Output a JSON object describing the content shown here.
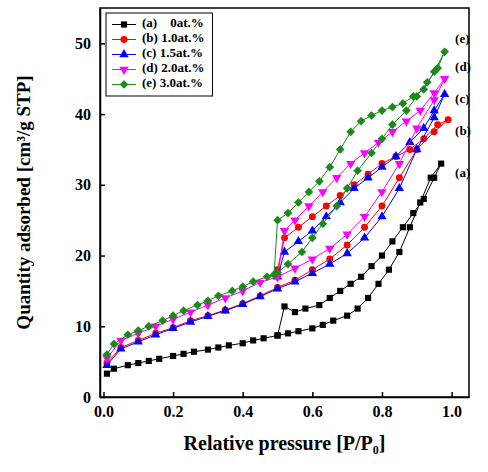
{
  "chart_data": {
    "type": "line",
    "x_label": "Relative pressure [P/P₀]",
    "y_label": "Quantity adsorbed [cm³/g STP]",
    "xlim": [
      -0.01,
      1.05
    ],
    "ylim": [
      0,
      55
    ],
    "xticks": [
      {
        "value": 0,
        "label": "0.0"
      },
      {
        "value": 0.2,
        "label": "0.2"
      },
      {
        "value": 0.4,
        "label": "0.4"
      },
      {
        "value": 0.6,
        "label": "0.6"
      },
      {
        "value": 0.8,
        "label": "0.8"
      },
      {
        "value": 1.0,
        "label": "1.0"
      }
    ],
    "yticks": [
      0,
      10,
      20,
      30,
      40,
      50
    ],
    "legend": "upper left",
    "series": [
      {
        "name": "(a)    0at.%",
        "color": "#000000",
        "marker": "square",
        "line_style": "solid",
        "x": [
          0.01,
          0.03,
          0.07,
          0.1,
          0.13,
          0.16,
          0.2,
          0.23,
          0.26,
          0.3,
          0.33,
          0.36,
          0.4,
          0.43,
          0.46,
          0.5,
          0.53,
          0.56,
          0.6,
          0.63,
          0.66,
          0.7,
          0.73,
          0.76,
          0.79,
          0.82,
          0.85,
          0.88,
          0.91,
          0.94,
          0.97,
          0.95,
          0.92,
          0.89,
          0.86,
          0.83,
          0.8,
          0.77,
          0.74,
          0.71,
          0.68,
          0.65,
          0.62,
          0.58,
          0.55,
          0.52,
          0.5
        ],
        "values": [
          3.3,
          4.0,
          4.5,
          4.8,
          5.1,
          5.4,
          5.8,
          6.1,
          6.4,
          6.7,
          7.0,
          7.3,
          7.6,
          8.0,
          8.3,
          8.7,
          9.0,
          9.3,
          9.7,
          10.2,
          10.8,
          11.5,
          12.5,
          14,
          16,
          18,
          20.5,
          24,
          27.5,
          31,
          33,
          31,
          28,
          26,
          24,
          22,
          20,
          18.5,
          17,
          16,
          15,
          14,
          13,
          12.5,
          12,
          12.8,
          8.7
        ]
      },
      {
        "name": "(b) 1.0at.%",
        "color": "#ff0000",
        "marker": "circle",
        "line_style": "solid",
        "x": [
          0.01,
          0.05,
          0.1,
          0.15,
          0.2,
          0.25,
          0.3,
          0.35,
          0.4,
          0.45,
          0.5,
          0.55,
          0.6,
          0.65,
          0.7,
          0.75,
          0.8,
          0.85,
          0.9,
          0.95,
          0.99,
          0.96,
          0.92,
          0.88,
          0.84,
          0.8,
          0.76,
          0.72,
          0.68,
          0.64,
          0.6,
          0.56,
          0.52,
          0.5
        ],
        "values": [
          4.8,
          7,
          8,
          9,
          9.8,
          10.8,
          11.5,
          12.3,
          13.2,
          14.3,
          15.5,
          16.5,
          18,
          19.5,
          21.5,
          24,
          27,
          31,
          35,
          37.5,
          39.2,
          38.5,
          36.5,
          35,
          34,
          33,
          31.5,
          30,
          28.5,
          27,
          25.5,
          24,
          22.5,
          18
        ]
      },
      {
        "name": "(c) 1.5at.%",
        "color": "#0000ff",
        "marker": "triangle-up",
        "line_style": "solid",
        "x": [
          0.01,
          0.05,
          0.1,
          0.15,
          0.2,
          0.25,
          0.3,
          0.35,
          0.4,
          0.45,
          0.5,
          0.55,
          0.6,
          0.65,
          0.7,
          0.75,
          0.8,
          0.85,
          0.9,
          0.95,
          0.98,
          0.95,
          0.92,
          0.88,
          0.84,
          0.8,
          0.76,
          0.72,
          0.68,
          0.64,
          0.6,
          0.56,
          0.52,
          0.5
        ],
        "values": [
          4.5,
          6.8,
          7.8,
          8.8,
          9.7,
          10.6,
          11.4,
          12.2,
          13.1,
          14.2,
          15.3,
          16.3,
          17.5,
          18.8,
          20.3,
          22.5,
          25.5,
          29.5,
          35,
          39.5,
          42.8,
          40.5,
          38,
          36,
          34,
          32.5,
          31,
          29.5,
          27.5,
          25.5,
          23.5,
          22,
          20.5,
          17
        ]
      },
      {
        "name": "(d) 2.0at.%",
        "color": "#ff00ff",
        "marker": "triangle-down",
        "line_style": "solid",
        "x": [
          0.01,
          0.05,
          0.1,
          0.15,
          0.2,
          0.25,
          0.3,
          0.35,
          0.4,
          0.45,
          0.5,
          0.55,
          0.6,
          0.65,
          0.7,
          0.75,
          0.8,
          0.85,
          0.9,
          0.95,
          0.98,
          0.95,
          0.91,
          0.87,
          0.83,
          0.79,
          0.75,
          0.71,
          0.67,
          0.63,
          0.59,
          0.55,
          0.52,
          0.5
        ],
        "values": [
          5.5,
          8,
          9,
          10,
          11,
          12,
          13,
          14,
          15,
          16.2,
          17,
          18.2,
          19.5,
          21,
          23,
          25.5,
          29,
          33,
          38,
          42,
          45,
          43,
          40.5,
          39,
          37.5,
          36,
          34.5,
          33,
          31,
          29,
          27,
          25,
          23.5,
          17
        ]
      },
      {
        "name": "(e) 3.0at.%",
        "color": "#1a8a1a",
        "marker": "diamond",
        "line_style": "solid",
        "x": [
          0.01,
          0.03,
          0.07,
          0.1,
          0.13,
          0.17,
          0.2,
          0.23,
          0.27,
          0.3,
          0.33,
          0.37,
          0.4,
          0.43,
          0.47,
          0.5,
          0.53,
          0.57,
          0.6,
          0.63,
          0.67,
          0.7,
          0.73,
          0.77,
          0.8,
          0.83,
          0.87,
          0.9,
          0.93,
          0.96,
          0.98,
          0.95,
          0.92,
          0.89,
          0.86,
          0.83,
          0.8,
          0.77,
          0.74,
          0.71,
          0.68,
          0.65,
          0.62,
          0.59,
          0.56,
          0.53,
          0.5,
          0.49
        ],
        "values": [
          6,
          7.5,
          8.8,
          9.4,
          10,
          10.8,
          11.5,
          12.2,
          13,
          13.6,
          14.3,
          15,
          15.6,
          16.3,
          17,
          17.6,
          18.8,
          20.5,
          22.5,
          24.5,
          27,
          29.5,
          32,
          34.5,
          36.5,
          38.5,
          40.5,
          42.5,
          44.5,
          46.5,
          48.8,
          46,
          43.5,
          42.5,
          41.5,
          41,
          40.5,
          39.8,
          39,
          37.5,
          35,
          32.5,
          30.5,
          29,
          27.5,
          26,
          25,
          17.3
        ]
      }
    ],
    "annotations": [
      {
        "text": "(e)",
        "x": 1.01,
        "y": 50.5
      },
      {
        "text": "(d)",
        "x": 1.01,
        "y": 46.5
      },
      {
        "text": "(c)",
        "x": 1.01,
        "y": 42
      },
      {
        "text": "(b)",
        "x": 1.01,
        "y": 37.5
      },
      {
        "text": "(a)",
        "x": 1.01,
        "y": 31.5
      }
    ]
  }
}
